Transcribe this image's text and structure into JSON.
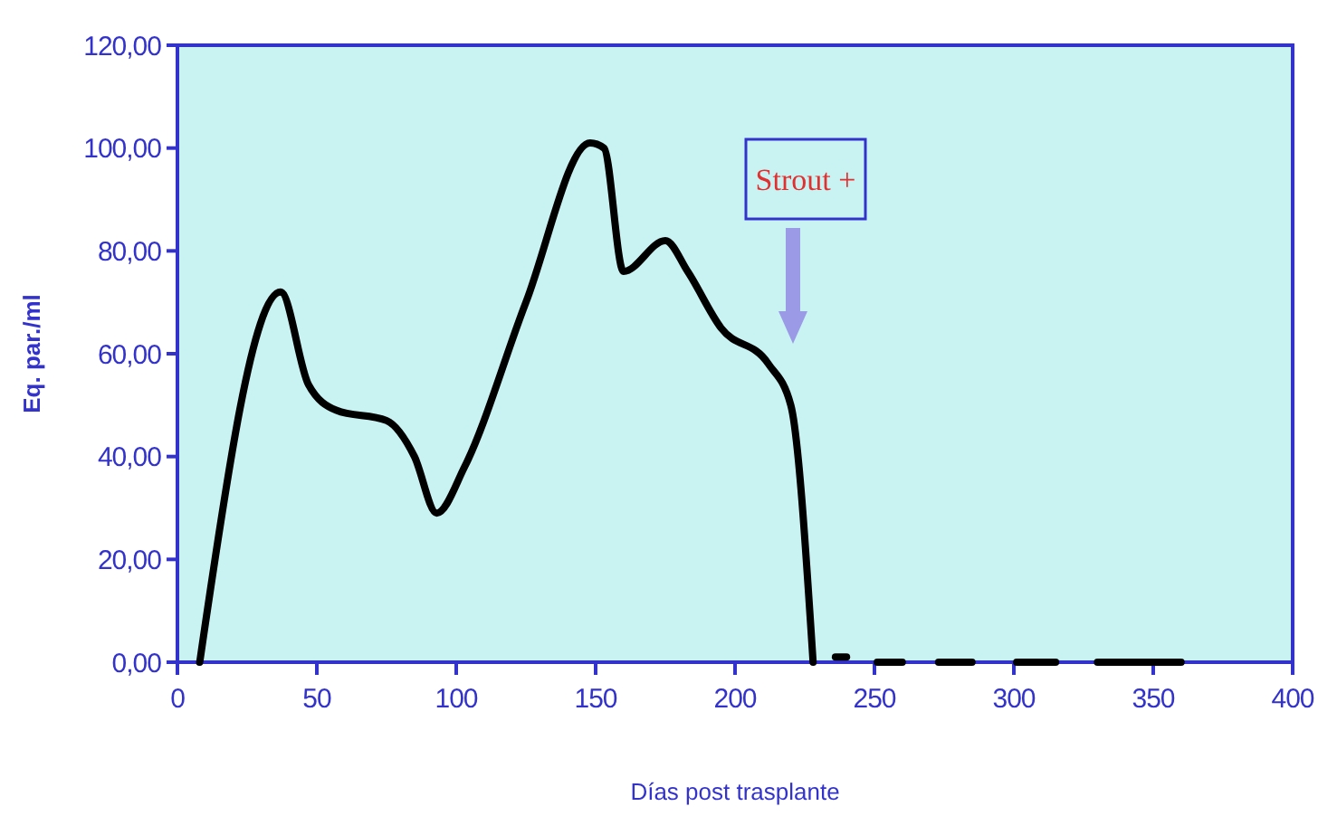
{
  "chart_data": {
    "type": "line",
    "xlabel": "Días post trasplante",
    "ylabel": "Eq. par./ml",
    "series": [
      {
        "color": "#000000",
        "x": [
          8,
          37,
          47,
          57,
          75,
          85,
          93,
          103,
          125,
          148,
          153,
          160,
          175,
          183,
          195,
          212,
          220,
          228
        ],
        "values": [
          0,
          72,
          54,
          49,
          47,
          40,
          29,
          38,
          70,
          101,
          100,
          76,
          82,
          76,
          65,
          58,
          50,
          0
        ]
      },
      {
        "color": "#000000",
        "x": [
          236,
          240
        ],
        "values": [
          1,
          1
        ]
      },
      {
        "color": "#000000",
        "x": [
          251,
          260
        ],
        "values": [
          0,
          0
        ]
      },
      {
        "color": "#000000",
        "x": [
          273,
          285
        ],
        "values": [
          0,
          0
        ]
      },
      {
        "color": "#000000",
        "x": [
          301,
          315
        ],
        "values": [
          0,
          0
        ]
      },
      {
        "color": "#000000",
        "x": [
          330,
          360
        ],
        "values": [
          0,
          0
        ]
      }
    ],
    "xlim": [
      0,
      400
    ],
    "xticks": [
      0,
      50,
      100,
      150,
      200,
      250,
      300,
      350,
      400
    ],
    "ylim": [
      0,
      120
    ],
    "yticks": [
      {
        "value": 0,
        "label": "0,00"
      },
      {
        "value": 20,
        "label": "20,00"
      },
      {
        "value": 40,
        "label": "40,00"
      },
      {
        "value": 60,
        "label": "60,00"
      },
      {
        "value": 80,
        "label": "80,00"
      },
      {
        "value": 100,
        "label": "100,00"
      },
      {
        "value": 120,
        "label": "120,00"
      }
    ],
    "annotations": [
      "Strout +"
    ],
    "grid": false,
    "marker": "none",
    "line_style": "solid"
  }
}
